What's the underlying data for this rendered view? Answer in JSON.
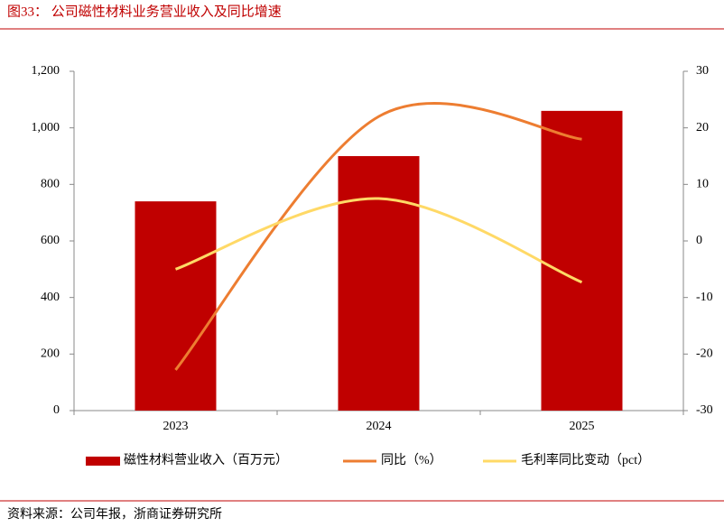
{
  "chart_data": {
    "type": "combo",
    "title": "图33：  公司磁性材料业务营业收入及同比增速",
    "source": "资料来源：公司年报，浙商证券研究所",
    "categories": [
      "2023",
      "2024",
      "2025"
    ],
    "series": [
      {
        "name": "磁性材料营业收入（百万元）",
        "type": "bar",
        "color": "#c00000",
        "values": [
          740,
          900,
          1060
        ]
      },
      {
        "name": "同比（%）",
        "type": "line",
        "axis": "y2",
        "color": "#ed7d31",
        "values": [
          -22.8,
          22,
          18
        ]
      },
      {
        "name": "毛利率同比变动（pct）",
        "type": "line",
        "axis": "y2",
        "color": "#ffd966",
        "values": [
          -5,
          7.5,
          -7.3
        ]
      }
    ],
    "ylim": [
      0,
      1200
    ],
    "yticks": [
      0,
      200,
      400,
      600,
      800,
      {
        "value": 1000,
        "label": "1,000"
      },
      {
        "value": 1200,
        "label": "1,200"
      }
    ],
    "y2lim": [
      -30,
      30
    ],
    "y2ticks": [
      -30,
      -20,
      -10,
      0,
      10,
      20,
      30
    ]
  }
}
